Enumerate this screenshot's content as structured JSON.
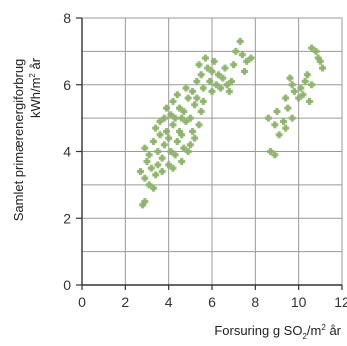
{
  "chart_data": {
    "type": "scatter",
    "title": "",
    "xlim": [
      0,
      12
    ],
    "ylim": [
      0,
      8
    ],
    "x_ticks": [
      "0",
      "2",
      "4",
      "6",
      "8",
      "10",
      "12"
    ],
    "y_ticks": [
      "0",
      "2",
      "4",
      "6",
      "8"
    ],
    "x_tick_values": [
      0,
      2,
      4,
      6,
      8,
      10,
      12
    ],
    "y_tick_values": [
      0,
      2,
      4,
      6,
      8
    ],
    "xlabel": {
      "prefix": "Forsuring  g SO",
      "sub": "2",
      "mid": "/m",
      "sup": "2",
      "suffix": " år"
    },
    "ylabel_line1": "Samlet primærenergiforbrug",
    "ylabel_line2": {
      "prefix": "kWh/m",
      "sup": "2",
      "suffix": " år"
    },
    "grid": true,
    "marker_color": "#8db36c",
    "series": [
      {
        "name": "",
        "points": [
          [
            2.8,
            2.4
          ],
          [
            2.9,
            2.5
          ],
          [
            2.7,
            3.4
          ],
          [
            2.9,
            3.2
          ],
          [
            3.1,
            3.0
          ],
          [
            3.3,
            2.9
          ],
          [
            3.0,
            3.7
          ],
          [
            3.2,
            3.5
          ],
          [
            3.4,
            3.3
          ],
          [
            3.5,
            3.6
          ],
          [
            2.9,
            4.1
          ],
          [
            3.1,
            3.9
          ],
          [
            3.3,
            4.3
          ],
          [
            3.5,
            4.0
          ],
          [
            3.6,
            4.5
          ],
          [
            3.4,
            4.7
          ],
          [
            3.7,
            3.8
          ],
          [
            3.8,
            4.2
          ],
          [
            3.9,
            4.6
          ],
          [
            3.6,
            4.9
          ],
          [
            3.8,
            5.0
          ],
          [
            3.9,
            5.3
          ],
          [
            4.0,
            3.6
          ],
          [
            4.1,
            4.0
          ],
          [
            4.0,
            4.4
          ],
          [
            4.2,
            4.8
          ],
          [
            4.1,
            5.1
          ],
          [
            4.2,
            5.5
          ],
          [
            4.3,
            3.9
          ],
          [
            4.4,
            4.3
          ],
          [
            4.5,
            4.6
          ],
          [
            4.3,
            5.0
          ],
          [
            4.5,
            5.3
          ],
          [
            4.4,
            5.7
          ],
          [
            4.6,
            3.7
          ],
          [
            4.7,
            4.1
          ],
          [
            4.6,
            4.5
          ],
          [
            4.8,
            4.9
          ],
          [
            4.7,
            5.2
          ],
          [
            4.9,
            5.6
          ],
          [
            4.8,
            5.9
          ],
          [
            5.0,
            4.2
          ],
          [
            5.1,
            4.6
          ],
          [
            5.0,
            5.0
          ],
          [
            5.2,
            5.4
          ],
          [
            5.1,
            5.8
          ],
          [
            5.3,
            6.1
          ],
          [
            5.2,
            4.4
          ],
          [
            5.4,
            4.8
          ],
          [
            5.5,
            5.2
          ],
          [
            5.3,
            5.6
          ],
          [
            5.6,
            5.9
          ],
          [
            5.5,
            6.3
          ],
          [
            5.4,
            6.6
          ],
          [
            5.7,
            6.8
          ],
          [
            5.8,
            6.5
          ],
          [
            5.9,
            6.1
          ],
          [
            6.0,
            6.4
          ],
          [
            6.1,
            6.7
          ],
          [
            6.0,
            5.8
          ],
          [
            6.2,
            6.0
          ],
          [
            6.3,
            6.3
          ],
          [
            6.4,
            5.9
          ],
          [
            6.5,
            6.2
          ],
          [
            6.6,
            6.5
          ],
          [
            6.7,
            6.0
          ],
          [
            6.8,
            5.8
          ],
          [
            6.9,
            6.1
          ],
          [
            7.0,
            6.6
          ],
          [
            7.1,
            7.0
          ],
          [
            7.3,
            7.3
          ],
          [
            7.4,
            6.9
          ],
          [
            7.5,
            6.4
          ],
          [
            7.6,
            6.7
          ],
          [
            7.8,
            6.8
          ],
          [
            4.9,
            4.0
          ],
          [
            4.2,
            3.5
          ],
          [
            3.7,
            3.4
          ],
          [
            4.6,
            5.0
          ],
          [
            5.6,
            5.5
          ],
          [
            8.7,
            4.0
          ],
          [
            8.9,
            3.9
          ],
          [
            8.6,
            5.0
          ],
          [
            8.9,
            4.8
          ],
          [
            9.0,
            5.2
          ],
          [
            9.1,
            4.5
          ],
          [
            9.3,
            4.9
          ],
          [
            9.4,
            4.7
          ],
          [
            9.5,
            5.3
          ],
          [
            9.4,
            5.6
          ],
          [
            9.6,
            6.2
          ],
          [
            9.7,
            6.0
          ],
          [
            9.7,
            5.0
          ],
          [
            10.0,
            5.6
          ],
          [
            10.1,
            5.9
          ],
          [
            10.2,
            5.7
          ],
          [
            10.4,
            6.3
          ],
          [
            10.5,
            5.5
          ],
          [
            10.6,
            6.0
          ],
          [
            10.6,
            7.1
          ],
          [
            10.8,
            7.0
          ],
          [
            10.9,
            6.8
          ],
          [
            11.0,
            6.7
          ],
          [
            11.1,
            6.5
          ],
          [
            10.3,
            6.1
          ],
          [
            9.8,
            5.8
          ]
        ]
      }
    ]
  }
}
